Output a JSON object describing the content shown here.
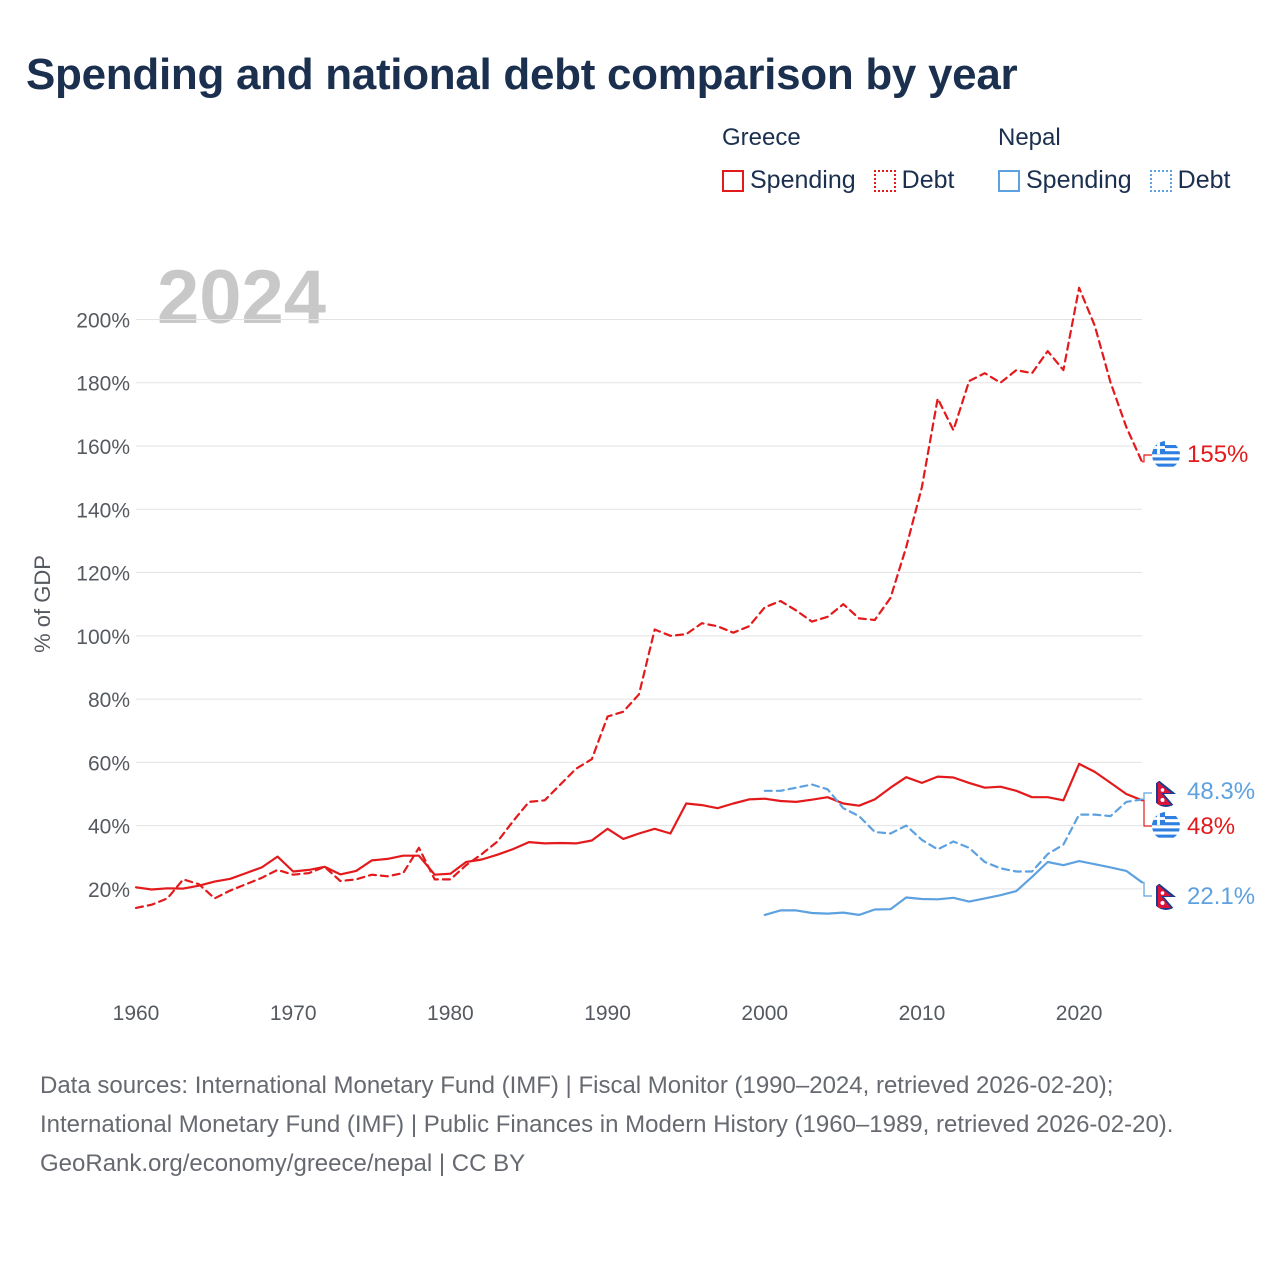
{
  "title": "Spending and national debt comparison by year",
  "legend": {
    "groups": [
      {
        "name": "Greece",
        "color": "#e31a1c",
        "items": [
          {
            "label": "Spending",
            "style": "solid"
          },
          {
            "label": "Debt",
            "style": "dotted"
          }
        ]
      },
      {
        "name": "Nepal",
        "color": "#5ea1e0",
        "items": [
          {
            "label": "Spending",
            "style": "solid"
          },
          {
            "label": "Debt",
            "style": "dotted"
          }
        ]
      }
    ]
  },
  "year_label": "2024",
  "chart_data": {
    "type": "line",
    "ylabel": "% of GDP",
    "xlabel": "",
    "xlim": [
      1960,
      2024
    ],
    "ylim": [
      -5,
      215
    ],
    "x_ticks": [
      1960,
      1970,
      1980,
      1990,
      2000,
      2010,
      2020
    ],
    "x_tick_labels": [
      "1960",
      "1970",
      "1980",
      "1990",
      "2000",
      "2010",
      "2020"
    ],
    "y_ticks": [
      20,
      40,
      60,
      80,
      100,
      120,
      140,
      160,
      180,
      200
    ],
    "y_tick_labels": [
      "20%",
      "40%",
      "60%",
      "80%",
      "100%",
      "120%",
      "140%",
      "160%",
      "180%",
      "200%"
    ],
    "grid": true,
    "series": [
      {
        "name": "Greece Debt",
        "country": "Greece",
        "measure": "Debt",
        "color": "#e31a1c",
        "dash": true,
        "start_year": 1960,
        "values": [
          14,
          15,
          17,
          23,
          21.5,
          17,
          19.5,
          21.5,
          23.5,
          26,
          24.5,
          25,
          27,
          22.5,
          23,
          24.5,
          24,
          25,
          33,
          23,
          23,
          27.5,
          31,
          35,
          41.5,
          47.5,
          48,
          53,
          58,
          61,
          74.5,
          76,
          81.5,
          102,
          100,
          100.5,
          104,
          103,
          101,
          103,
          109,
          111,
          108,
          104.5,
          106,
          110,
          105.5,
          105,
          112,
          128,
          147,
          175,
          165,
          180.5,
          183,
          180,
          184,
          183,
          190,
          184,
          210,
          198,
          180,
          166,
          155
        ],
        "end_label": "155%"
      },
      {
        "name": "Greece Spending",
        "country": "Greece",
        "measure": "Spending",
        "color": "#e31a1c",
        "dash": false,
        "start_year": 1960,
        "values": [
          20.5,
          19.8,
          20.2,
          20.1,
          21,
          22.3,
          23.2,
          25,
          26.8,
          30.2,
          25.5,
          26,
          27,
          24.6,
          25.7,
          29,
          29.5,
          30.5,
          30.5,
          24.5,
          24.8,
          28.5,
          29.3,
          30.8,
          32.6,
          34.8,
          34.4,
          34.5,
          34.4,
          35.3,
          39,
          35.8,
          37.5,
          39,
          37.5,
          47,
          46.5,
          45.5,
          47,
          48.3,
          48.5,
          47.8,
          47.5,
          48.2,
          49,
          47,
          46.3,
          48.3,
          52,
          55.3,
          53.5,
          55.5,
          55.2,
          53.5,
          52,
          52.3,
          51,
          49,
          49,
          48,
          59.5,
          57,
          53.5,
          50,
          48
        ],
        "end_label": "48%"
      },
      {
        "name": "Nepal Debt",
        "country": "Nepal",
        "measure": "Debt",
        "color": "#5ea1e0",
        "dash": true,
        "start_year": 2000,
        "values": [
          51,
          51,
          52,
          53,
          51.5,
          45.5,
          43,
          38,
          37.5,
          40,
          35.5,
          32.5,
          35,
          33,
          28.5,
          26.5,
          25.5,
          25.5,
          31,
          34,
          43.5,
          43.5,
          43,
          47.5,
          48.3
        ],
        "end_label": "48.3%"
      },
      {
        "name": "Nepal Spending",
        "country": "Nepal",
        "measure": "Spending",
        "color": "#5ea1e0",
        "dash": false,
        "start_year": 2000,
        "values": [
          11.8,
          13.2,
          13.2,
          12.4,
          12.2,
          12.5,
          11.8,
          13.5,
          13.6,
          17.3,
          16.8,
          16.7,
          17.2,
          16,
          17,
          18,
          19.3,
          23.8,
          28.5,
          27.5,
          28.8,
          27.8,
          26.8,
          25.7,
          22.1
        ],
        "end_label": "22.1%"
      }
    ]
  },
  "footer": {
    "sources": "Data sources: International Monetary Fund (IMF) | Fiscal Monitor (1990–2024, retrieved 2026-02-20); International Monetary Fund (IMF) | Public Finances in Modern History (1960–1989, retrieved 2026-02-20).",
    "credit": "GeoRank.org/economy/greece/nepal | CC BY"
  }
}
